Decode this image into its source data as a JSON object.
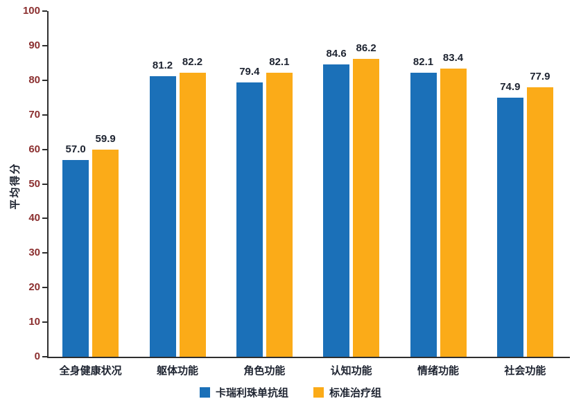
{
  "chart_data": {
    "type": "bar",
    "title": "",
    "ylabel": "平均得分",
    "xlabel": "",
    "ylim": [
      0,
      100
    ],
    "ytick_step": 10,
    "grid": false,
    "legend_position": "bottom",
    "categories": [
      "全身健康状况",
      "躯体功能",
      "角色功能",
      "认知功能",
      "情绪功能",
      "社会功能"
    ],
    "series": [
      {
        "name": "卡瑞利珠单抗组",
        "color": "#1b70b8",
        "values": [
          57.0,
          81.2,
          79.4,
          84.6,
          82.1,
          74.9
        ]
      },
      {
        "name": "标准治疗组",
        "color": "#fbab18",
        "values": [
          59.9,
          82.2,
          82.1,
          86.2,
          83.4,
          77.9
        ]
      }
    ]
  },
  "colors": {
    "axis": "#2e2e2e",
    "tick_text": "#8b2f2f",
    "label_text": "#1d2330",
    "background": "#ffffff"
  }
}
